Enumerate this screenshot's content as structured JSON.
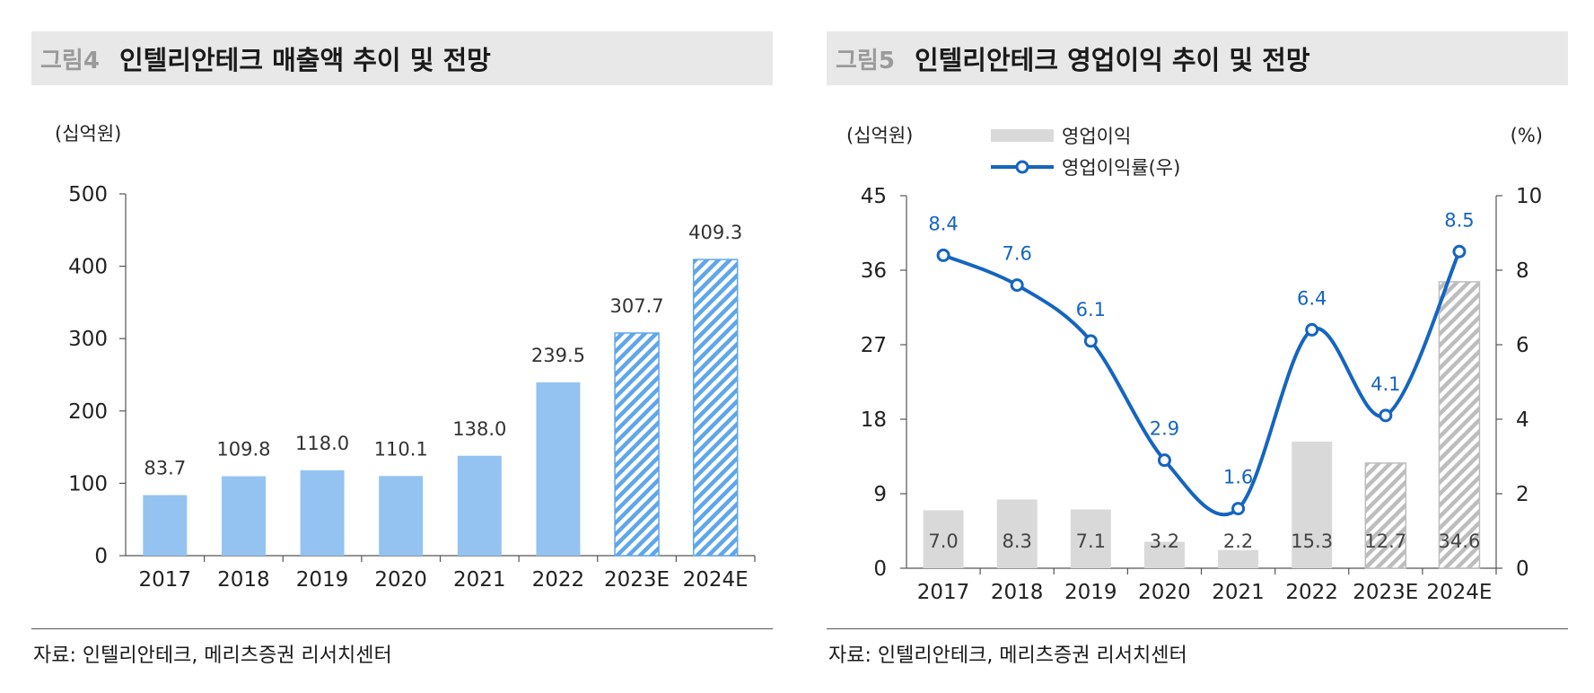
{
  "left": {
    "fig_no": "그림4",
    "title": "인텔리안테크 매출액 추이 및 전망",
    "source": "자료: 인텔리안테크, 메리츠증권 리서치센터"
  },
  "right": {
    "fig_no": "그림5",
    "title": "인텔리안테크 영업이익 추이 및 전망",
    "source": "자료: 인텔리안테크, 메리츠증권 리서치센터"
  },
  "colors": {
    "revenue_bar": "#94c3f2",
    "revenue_hatch": "#5fa6ea",
    "op_bar": "#d9d9d9",
    "op_hatch": "#bdbdbd",
    "margin_line": "#1565c0",
    "axis": "#555555"
  },
  "chart_data": [
    {
      "type": "bar",
      "categories": [
        "2017",
        "2018",
        "2019",
        "2020",
        "2021",
        "2022",
        "2023E",
        "2024E"
      ],
      "values": [
        83.7,
        109.8,
        118.0,
        110.1,
        138.0,
        239.5,
        307.7,
        409.3
      ],
      "value_labels": [
        "83.7",
        "109.8",
        "118.0",
        "110.1",
        "138.0",
        "239.5",
        "307.7",
        "409.3"
      ],
      "forecast_flags": [
        false,
        false,
        false,
        false,
        false,
        false,
        true,
        true
      ],
      "ylabel": "(십억원)",
      "ylim": [
        0,
        500
      ],
      "yticks": [
        0,
        100,
        200,
        300,
        400,
        500
      ],
      "grid": false
    },
    {
      "type": "bar",
      "categories": [
        "2017",
        "2018",
        "2019",
        "2020",
        "2021",
        "2022",
        "2023E",
        "2024E"
      ],
      "series": [
        {
          "name": "영업이익",
          "type": "bar",
          "axis": "left",
          "values": [
            7.0,
            8.3,
            7.1,
            3.2,
            2.2,
            15.3,
            12.7,
            34.6
          ],
          "value_labels": [
            "7.0",
            "8.3",
            "7.1",
            "3.2",
            "2.2",
            "15.3",
            "12.7",
            "34.6"
          ],
          "forecast_flags": [
            false,
            false,
            false,
            false,
            false,
            false,
            true,
            true
          ]
        },
        {
          "name": "영업이익률(우)",
          "type": "line",
          "axis": "right",
          "values": [
            8.4,
            7.6,
            6.1,
            2.9,
            1.6,
            6.4,
            4.1,
            8.5
          ],
          "value_labels": [
            "8.4",
            "7.6",
            "6.1",
            "2.9",
            "1.6",
            "6.4",
            "4.1",
            "8.5"
          ]
        }
      ],
      "ylabel": "(십억원)",
      "y2label": "(%)",
      "ylim": [
        0,
        45
      ],
      "yticks": [
        0,
        9,
        18,
        27,
        36,
        45
      ],
      "y2lim": [
        0,
        10
      ],
      "y2ticks": [
        0,
        2,
        4,
        6,
        8,
        10
      ],
      "legend_position": "top-left",
      "grid": false
    }
  ]
}
